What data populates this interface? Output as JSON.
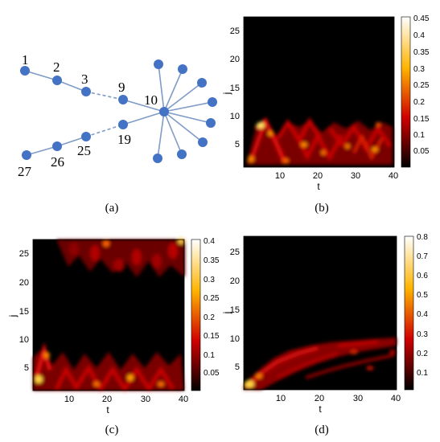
{
  "graph": {
    "node_labels": [
      "1",
      "2",
      "3",
      "9",
      "10",
      "19",
      "25",
      "26",
      "27"
    ],
    "colors": {
      "node": "#4472C4",
      "edge": "#7f9bc7"
    }
  },
  "panels": {
    "a": "(a)",
    "b": "(b)",
    "c": "(c)",
    "d": "(d)"
  },
  "heatmaps": {
    "b": {
      "x_ticks": [
        "10",
        "20",
        "30",
        "40"
      ],
      "y_ticks": [
        "5",
        "10",
        "15",
        "20",
        "25"
      ],
      "xlabel": "t",
      "ylabel": "j",
      "colorbar_ticks": [
        "0.05",
        "0.1",
        "0.15",
        "0.2",
        "0.25",
        "0.3",
        "0.35",
        "0.4",
        "0.45"
      ]
    },
    "c": {
      "x_ticks": [
        "10",
        "20",
        "30",
        "40"
      ],
      "y_ticks": [
        "5",
        "10",
        "15",
        "20",
        "25"
      ],
      "xlabel": "t",
      "ylabel": "j",
      "colorbar_ticks": [
        "0.05",
        "0.1",
        "0.15",
        "0.2",
        "0.25",
        "0.3",
        "0.35",
        "0.4"
      ]
    },
    "d": {
      "x_ticks": [
        "10",
        "20",
        "30",
        "40"
      ],
      "y_ticks": [
        "5",
        "10",
        "15",
        "20",
        "25"
      ],
      "xlabel": "t",
      "ylabel": "j",
      "colorbar_ticks": [
        "0.1",
        "0.2",
        "0.3",
        "0.4",
        "0.5",
        "0.6",
        "0.7",
        "0.8"
      ]
    }
  }
}
